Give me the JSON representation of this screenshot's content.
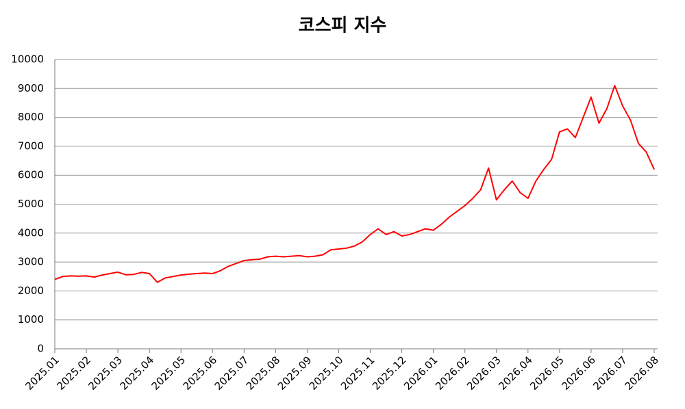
{
  "chart_data": {
    "type": "line",
    "title": "코스피 지수",
    "categories": [
      "2025.01",
      null,
      null,
      null,
      "2025.02",
      null,
      null,
      null,
      "2025.03",
      null,
      null,
      null,
      "2025.04",
      null,
      null,
      null,
      "2025.05",
      null,
      null,
      null,
      "2025.06",
      null,
      null,
      null,
      "2025.07",
      null,
      null,
      null,
      "2025.08",
      null,
      null,
      null,
      "2025.09",
      null,
      null,
      null,
      "2025.10",
      null,
      null,
      null,
      "2025.11",
      null,
      null,
      null,
      "2025.12",
      null,
      null,
      null,
      "2026.01",
      null,
      null,
      null,
      "2026.02",
      null,
      null,
      null,
      "2026.03",
      null,
      null,
      null,
      "2026.04",
      null,
      null,
      null,
      "2026.05",
      null,
      null,
      null,
      "2026.06",
      null,
      null,
      null,
      "2026.07",
      null,
      null,
      null,
      "2026.08"
    ],
    "series": [
      {
        "color": "#ff0000",
        "values": [
          2400,
          2500,
          2520,
          2510,
          2520,
          2480,
          2550,
          2600,
          2650,
          2560,
          2570,
          2640,
          2600,
          2300,
          2450,
          2500,
          2550,
          2580,
          2600,
          2620,
          2600,
          2700,
          2850,
          2950,
          3050,
          3080,
          3100,
          3180,
          3200,
          3180,
          3200,
          3220,
          3180,
          3200,
          3250,
          3420,
          3450,
          3480,
          3550,
          3700,
          3950,
          4150,
          3950,
          4050,
          3900,
          3950,
          4050,
          4150,
          4100,
          4300,
          4550,
          4750,
          4950,
          5200,
          5500,
          6250,
          5150,
          5500,
          5800,
          5400,
          5200,
          5800,
          6200,
          6550,
          7500,
          7600,
          7300,
          8000,
          8700,
          7800,
          8300,
          9100,
          8400,
          7900,
          7100,
          6800,
          6200
        ]
      }
    ],
    "ylim": [
      0,
      10000
    ],
    "yticks": [
      0,
      1000,
      2000,
      3000,
      4000,
      5000,
      6000,
      7000,
      8000,
      9000,
      10000
    ],
    "grid": true
  }
}
